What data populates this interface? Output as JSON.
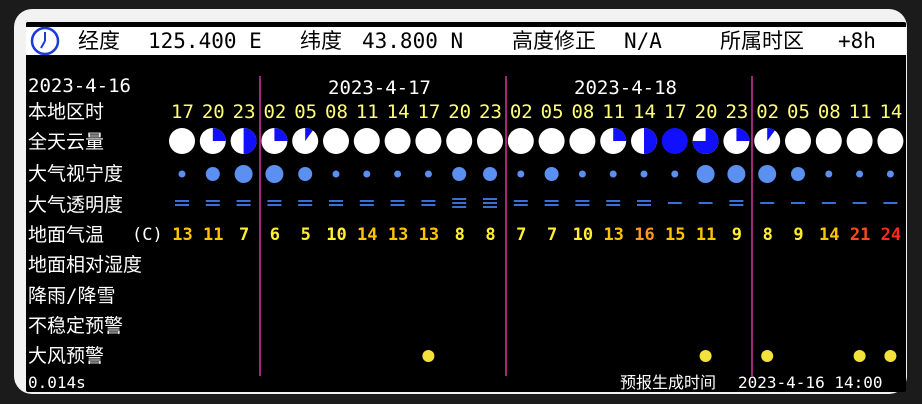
{
  "header": {
    "lon_label": "经度",
    "lon_value": "125.400 E",
    "lat_label": "纬度",
    "lat_value": "43.800 N",
    "alt_label": "高度修正",
    "alt_value": "N/A",
    "tz_label": "所属时区",
    "tz_value": "+8h"
  },
  "first_date": "2023-4-16",
  "dates": [
    "2023-4-17",
    "2023-4-18"
  ],
  "row_labels": {
    "hour": "本地区时",
    "cloud": "全天云量",
    "seeing": "大气视宁度",
    "transparency": "大气透明度",
    "temperature": "地面气温",
    "temp_unit": "(C)",
    "humidity": "地面相对湿度",
    "precip": "降雨/降雪",
    "instability": "不稳定预警",
    "wind": "大风预警"
  },
  "hours": [
    "17",
    "20",
    "23",
    "02",
    "05",
    "08",
    "11",
    "14",
    "17",
    "20",
    "23",
    "02",
    "05",
    "08",
    "11",
    "14",
    "17",
    "20",
    "23",
    "02",
    "05",
    "08",
    "11",
    "14"
  ],
  "cloud_cover": [
    0,
    0.25,
    0.5,
    0.25,
    0.1,
    0,
    0,
    0,
    0,
    0,
    0,
    0,
    0,
    0,
    0.25,
    0.5,
    1,
    0.75,
    0.25,
    0.1,
    0,
    0,
    0,
    0
  ],
  "seeing": [
    1,
    2,
    3,
    3,
    2,
    1,
    1,
    1,
    1,
    2,
    2,
    1,
    2,
    1,
    1,
    1,
    1,
    3,
    3,
    3,
    2,
    1,
    1,
    1
  ],
  "transparency": [
    2,
    2,
    2,
    2,
    2,
    2,
    2,
    2,
    2,
    3,
    3,
    2,
    2,
    2,
    2,
    2,
    1,
    1,
    2,
    1,
    1,
    1,
    1,
    1
  ],
  "temperatures": [
    "13",
    "11",
    "7",
    "6",
    "5",
    "10",
    "14",
    "13",
    "13",
    "8",
    "8",
    "7",
    "7",
    "10",
    "13",
    "16",
    "15",
    "11",
    "9",
    "8",
    "9",
    "14",
    "21",
    "24"
  ],
  "temp_colors": [
    "#ffc400",
    "#ffc400",
    "#ffee33",
    "#ffee33",
    "#ffee33",
    "#ffee33",
    "#ffc400",
    "#ffc400",
    "#ffc400",
    "#ffee33",
    "#ffee33",
    "#ffee33",
    "#ffee33",
    "#ffee33",
    "#ffc400",
    "#ff9a1a",
    "#ffc400",
    "#ffc400",
    "#ffee33",
    "#ffee33",
    "#ffee33",
    "#ffc400",
    "#ff4a1a",
    "#ff2a1a"
  ],
  "wind_warnings": [
    8,
    17,
    19,
    22,
    23
  ],
  "footer": {
    "elapsed": "0.014s",
    "generated_label": "预报生成时间",
    "generated_time": "2023-4-16 14:00"
  },
  "colors": {
    "cloud_cover": "#1010ff",
    "seeing": "#5b8ff0",
    "transparency": "#3a6fd8",
    "wind": "#f3e23a",
    "divider": "#a0287a"
  }
}
